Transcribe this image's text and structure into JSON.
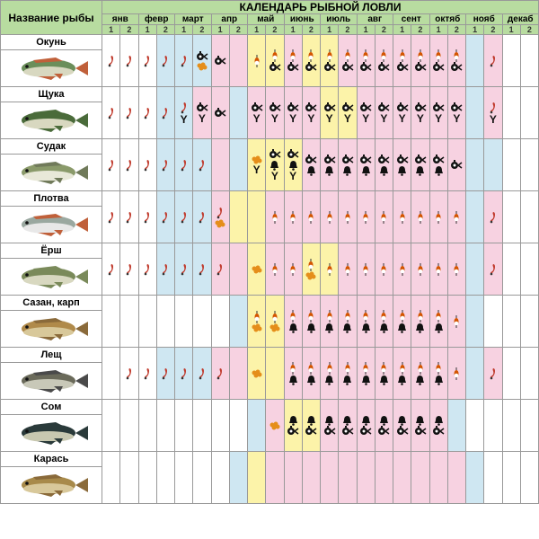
{
  "title": "КАЛЕНДАРЬ РЫБНОЙ ЛОВЛИ",
  "name_header": "Название рыбы",
  "months": [
    "янв",
    "февр",
    "март",
    "апр",
    "май",
    "июнь",
    "июль",
    "авг",
    "сент",
    "октяб",
    "нояб",
    "декаб"
  ],
  "half_labels": [
    "1",
    "2"
  ],
  "colors": {
    "header_bg": "#b8dca0",
    "bg_map": {
      "w": "#ffffff",
      "b": "#cfe7f2",
      "p": "#f7d2e1",
      "y": "#fcf3a9"
    },
    "grid": "#999999"
  },
  "bait_icons": {
    "J": {
      "desc": "jig-lure",
      "glyph": "svg-jig",
      "color": "#c0392b"
    },
    "R": {
      "desc": "reel-spinning",
      "glyph": "svg-reel",
      "color": "#111111"
    },
    "Y": {
      "desc": "fork-lure",
      "glyph": "Y",
      "color": "#111111"
    },
    "E": {
      "desc": "eggs-roe",
      "glyph": "svg-eggs",
      "color": "#e58e1a"
    },
    "F": {
      "desc": "bobber-float",
      "glyph": "svg-float",
      "color": "#d35400"
    },
    "B": {
      "desc": "bell-lure",
      "glyph": "svg-bell",
      "color": "#111111"
    }
  },
  "fish": [
    {
      "name": "Окунь",
      "body": "#6b8e5a",
      "belly": "#d8d8c0",
      "fin": "#c0603a",
      "bg": [
        "w",
        "w",
        "w",
        "b",
        "b",
        "b",
        "p",
        "p",
        "y",
        "y",
        "p",
        "y",
        "y",
        "p",
        "p",
        "p",
        "p",
        "p",
        "p",
        "p",
        "b",
        "p",
        "w",
        "w"
      ],
      "baits": [
        [
          "J"
        ],
        [
          "J"
        ],
        [
          "J"
        ],
        [
          "J"
        ],
        [
          "J"
        ],
        [
          "R",
          "E"
        ],
        [
          "R"
        ],
        [],
        [
          "F"
        ],
        [
          "F",
          "R"
        ],
        [
          "F",
          "R"
        ],
        [
          "F",
          "R"
        ],
        [
          "F",
          "R"
        ],
        [
          "F",
          "R"
        ],
        [
          "F",
          "R"
        ],
        [
          "F",
          "R"
        ],
        [
          "F",
          "R"
        ],
        [
          "F",
          "R"
        ],
        [
          "F",
          "R"
        ],
        [
          "F",
          "R"
        ],
        [],
        [
          "J"
        ],
        [],
        []
      ]
    },
    {
      "name": "Щука",
      "body": "#4a6b3a",
      "belly": "#d8d8c0",
      "fin": "#4a6b3a",
      "bg": [
        "w",
        "w",
        "w",
        "b",
        "b",
        "p",
        "p",
        "b",
        "p",
        "p",
        "p",
        "p",
        "y",
        "y",
        "p",
        "p",
        "p",
        "p",
        "p",
        "p",
        "b",
        "p",
        "w",
        "w"
      ],
      "baits": [
        [
          "J"
        ],
        [
          "J"
        ],
        [
          "J"
        ],
        [
          "J"
        ],
        [
          "J",
          "Y"
        ],
        [
          "R",
          "Y"
        ],
        [
          "R"
        ],
        [],
        [
          "R",
          "Y"
        ],
        [
          "R",
          "Y"
        ],
        [
          "R",
          "Y"
        ],
        [
          "R",
          "Y"
        ],
        [
          "R",
          "Y"
        ],
        [
          "R",
          "Y"
        ],
        [
          "R",
          "Y"
        ],
        [
          "R",
          "Y"
        ],
        [
          "R",
          "Y"
        ],
        [
          "R",
          "Y"
        ],
        [
          "R",
          "Y"
        ],
        [
          "R",
          "Y"
        ],
        [],
        [
          "J",
          "Y"
        ],
        [],
        []
      ]
    },
    {
      "name": "Судак",
      "body": "#8a9a6a",
      "belly": "#e8e8d8",
      "fin": "#707a5a",
      "bg": [
        "w",
        "w",
        "w",
        "b",
        "b",
        "b",
        "p",
        "b",
        "y",
        "y",
        "y",
        "p",
        "p",
        "p",
        "p",
        "p",
        "p",
        "p",
        "p",
        "p",
        "b",
        "b",
        "w",
        "w"
      ],
      "baits": [
        [
          "J"
        ],
        [
          "J"
        ],
        [
          "J"
        ],
        [
          "J"
        ],
        [
          "J"
        ],
        [
          "J"
        ],
        [],
        [],
        [
          "E",
          "Y"
        ],
        [
          "R",
          "B",
          "Y"
        ],
        [
          "R",
          "B",
          "Y"
        ],
        [
          "R",
          "B"
        ],
        [
          "R",
          "B"
        ],
        [
          "R",
          "B"
        ],
        [
          "R",
          "B"
        ],
        [
          "R",
          "B"
        ],
        [
          "R",
          "B"
        ],
        [
          "R",
          "B"
        ],
        [
          "R",
          "B"
        ],
        [
          "R"
        ],
        [],
        [],
        [],
        []
      ]
    },
    {
      "name": "Плотва",
      "body": "#9aa8a0",
      "belly": "#e8e8e8",
      "fin": "#c0603a",
      "bg": [
        "w",
        "w",
        "w",
        "b",
        "b",
        "b",
        "p",
        "y",
        "y",
        "p",
        "p",
        "p",
        "p",
        "p",
        "p",
        "p",
        "p",
        "p",
        "p",
        "p",
        "b",
        "p",
        "w",
        "w"
      ],
      "baits": [
        [
          "J"
        ],
        [
          "J"
        ],
        [
          "J"
        ],
        [
          "J"
        ],
        [
          "J"
        ],
        [
          "J"
        ],
        [
          "J",
          "E"
        ],
        [],
        [],
        [
          "F"
        ],
        [
          "F"
        ],
        [
          "F"
        ],
        [
          "F"
        ],
        [
          "F"
        ],
        [
          "F"
        ],
        [
          "F"
        ],
        [
          "F"
        ],
        [
          "F"
        ],
        [
          "F"
        ],
        [
          "F"
        ],
        [],
        [
          "J"
        ],
        [],
        []
      ]
    },
    {
      "name": "Ёрш",
      "body": "#7a8a5a",
      "belly": "#d8d8c0",
      "fin": "#7a8a5a",
      "bg": [
        "w",
        "w",
        "w",
        "b",
        "b",
        "b",
        "p",
        "p",
        "y",
        "p",
        "p",
        "y",
        "y",
        "p",
        "p",
        "p",
        "p",
        "p",
        "p",
        "p",
        "b",
        "p",
        "w",
        "w"
      ],
      "baits": [
        [
          "J"
        ],
        [
          "J"
        ],
        [
          "J"
        ],
        [
          "J"
        ],
        [
          "J"
        ],
        [
          "J"
        ],
        [
          "J"
        ],
        [],
        [
          "E"
        ],
        [
          "F"
        ],
        [
          "F"
        ],
        [
          "F",
          "E"
        ],
        [
          "F"
        ],
        [
          "F"
        ],
        [
          "F"
        ],
        [
          "F"
        ],
        [
          "F"
        ],
        [
          "F"
        ],
        [
          "F"
        ],
        [
          "F"
        ],
        [],
        [
          "J"
        ],
        [],
        []
      ]
    },
    {
      "name": "Сазан, карп",
      "body": "#b08a4a",
      "belly": "#d8c89a",
      "fin": "#8a6a3a",
      "bg": [
        "w",
        "w",
        "w",
        "w",
        "w",
        "w",
        "w",
        "b",
        "y",
        "y",
        "p",
        "p",
        "p",
        "p",
        "p",
        "p",
        "p",
        "p",
        "p",
        "p",
        "b",
        "w",
        "w",
        "w"
      ],
      "baits": [
        [],
        [],
        [],
        [],
        [],
        [],
        [],
        [],
        [
          "F",
          "E"
        ],
        [
          "F",
          "E"
        ],
        [
          "F",
          "B"
        ],
        [
          "F",
          "B"
        ],
        [
          "F",
          "B"
        ],
        [
          "F",
          "B"
        ],
        [
          "F",
          "B"
        ],
        [
          "F",
          "B"
        ],
        [
          "F",
          "B"
        ],
        [
          "F",
          "B"
        ],
        [
          "F",
          "B"
        ],
        [
          "F"
        ],
        [],
        [],
        [],
        []
      ]
    },
    {
      "name": "Лещ",
      "body": "#6a6a5a",
      "belly": "#c8c8b8",
      "fin": "#4a4a4a",
      "bg": [
        "w",
        "w",
        "w",
        "b",
        "b",
        "b",
        "p",
        "p",
        "y",
        "y",
        "p",
        "p",
        "p",
        "p",
        "p",
        "p",
        "p",
        "p",
        "p",
        "p",
        "b",
        "p",
        "w",
        "w"
      ],
      "baits": [
        [],
        [
          "J"
        ],
        [
          "J"
        ],
        [
          "J"
        ],
        [
          "J"
        ],
        [
          "J"
        ],
        [
          "J"
        ],
        [],
        [
          "E"
        ],
        [],
        [
          "F",
          "B"
        ],
        [
          "F",
          "B"
        ],
        [
          "F",
          "B"
        ],
        [
          "F",
          "B"
        ],
        [
          "F",
          "B"
        ],
        [
          "F",
          "B"
        ],
        [
          "F",
          "B"
        ],
        [
          "F",
          "B"
        ],
        [
          "F",
          "B"
        ],
        [
          "F"
        ],
        [],
        [
          "J"
        ],
        [],
        []
      ]
    },
    {
      "name": "Сом",
      "body": "#2a3a3a",
      "belly": "#c8c8b0",
      "fin": "#2a3a3a",
      "bg": [
        "w",
        "w",
        "w",
        "w",
        "w",
        "w",
        "w",
        "w",
        "b",
        "p",
        "y",
        "y",
        "p",
        "p",
        "p",
        "p",
        "p",
        "p",
        "p",
        "b",
        "w",
        "w",
        "w",
        "w"
      ],
      "baits": [
        [],
        [],
        [],
        [],
        [],
        [],
        [],
        [],
        [],
        [
          "E"
        ],
        [
          "B",
          "R"
        ],
        [
          "B",
          "R"
        ],
        [
          "B",
          "R"
        ],
        [
          "B",
          "R"
        ],
        [
          "B",
          "R"
        ],
        [
          "B",
          "R"
        ],
        [
          "B",
          "R"
        ],
        [
          "B",
          "R"
        ],
        [
          "B",
          "R"
        ],
        [],
        [],
        [],
        [],
        []
      ]
    },
    {
      "name": "Карась",
      "body": "#a88a4a",
      "belly": "#d8c89a",
      "fin": "#8a6a3a",
      "bg": [
        "w",
        "w",
        "w",
        "w",
        "w",
        "w",
        "w",
        "b",
        "y",
        "p",
        "p",
        "p",
        "p",
        "p",
        "p",
        "p",
        "p",
        "p",
        "p",
        "p",
        "b",
        "w",
        "w",
        "w"
      ],
      "baits": [
        [],
        [],
        [],
        [],
        [],
        [],
        [],
        [],
        [],
        [],
        [],
        [],
        [],
        [],
        [],
        [],
        [],
        [],
        [],
        [],
        [],
        [],
        [],
        []
      ]
    }
  ]
}
